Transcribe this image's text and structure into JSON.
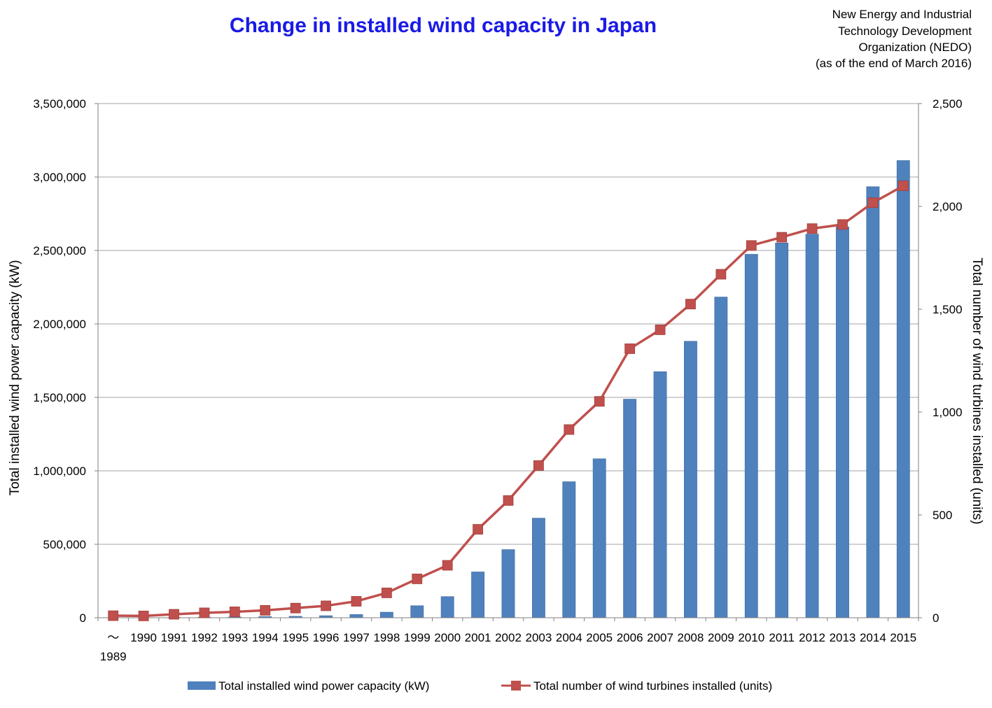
{
  "colors": {
    "title": "#1a1ae6",
    "bar": "#4f81bd",
    "bar_edge": "#3a6a9f",
    "line": "#c0504d",
    "grid": "#a6a6a6"
  },
  "source": {
    "line1": "New Energy and Industrial",
    "line2": "Technology Development",
    "line3": "Organization (NEDO)",
    "line4": "(as of the end of March 2016)"
  },
  "chart_data": {
    "type": "bar",
    "title": "Change in installed wind capacity in Japan",
    "categories": [
      "～1989",
      "1990",
      "1991",
      "1992",
      "1993",
      "1994",
      "1995",
      "1996",
      "1997",
      "1998",
      "1999",
      "2000",
      "2001",
      "2002",
      "2003",
      "2004",
      "2005",
      "2006",
      "2007",
      "2008",
      "2009",
      "2010",
      "2011",
      "2012",
      "2013",
      "2014",
      "2015"
    ],
    "first_category_parts": [
      "～",
      "1989"
    ],
    "series": [
      {
        "name": "Total installed wind power capacity (kW)",
        "type": "bar",
        "axis": "left",
        "values": [
          1000,
          1200,
          2500,
          3500,
          5000,
          8000,
          10000,
          14000,
          22000,
          38000,
          82000,
          144000,
          312000,
          464000,
          678000,
          926000,
          1082000,
          1488000,
          1675000,
          1882000,
          2183000,
          2474000,
          2551000,
          2611000,
          2661000,
          2934000,
          3112000
        ]
      },
      {
        "name": "Total number of wind turbines installed (units)",
        "type": "line",
        "axis": "right",
        "values": [
          10,
          9,
          17,
          24,
          29,
          36,
          47,
          58,
          80,
          121,
          189,
          255,
          430,
          570,
          740,
          915,
          1052,
          1308,
          1400,
          1525,
          1670,
          1810,
          1850,
          1892,
          1912,
          2018,
          2100
        ]
      }
    ],
    "ylabel": "Total installed wind power capacity (kW)",
    "y2label": "Total number of wind turbines installed (units)",
    "xlabel": "",
    "ylim": [
      0,
      3500000
    ],
    "y2lim": [
      0,
      2500
    ],
    "yticks": [
      0,
      500000,
      1000000,
      1500000,
      2000000,
      2500000,
      3000000,
      3500000
    ],
    "y2ticks": [
      0,
      500,
      1000,
      1500,
      2000,
      2500
    ],
    "ytick_labels": [
      "0",
      "500,000",
      "1,000,000",
      "1,500,000",
      "2,000,000",
      "2,500,000",
      "3,000,000",
      "3,500,000"
    ],
    "y2tick_labels": [
      "0",
      "500",
      "1,000",
      "1,500",
      "2,000",
      "2,500"
    ],
    "grid": true,
    "legend": "bottom"
  }
}
